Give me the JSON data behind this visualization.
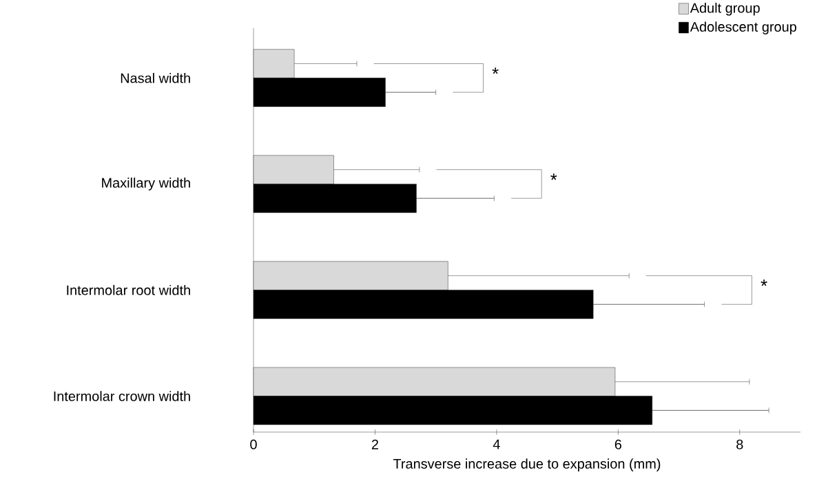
{
  "chart_data": {
    "type": "bar",
    "orientation": "horizontal",
    "xlabel": "Transverse increase due to expansion (mm)",
    "categories": [
      "Nasal width",
      "Maxillary width",
      "Intermolar root width",
      "Intermolar crown width"
    ],
    "series": [
      {
        "name": "Adult group",
        "color": "#d9d9d9",
        "values": [
          0.67,
          1.32,
          3.2,
          5.95
        ],
        "errors": [
          1.03,
          1.41,
          2.98,
          2.21
        ]
      },
      {
        "name": "Adolescent group",
        "color": "#000000",
        "values": [
          2.17,
          2.68,
          5.59,
          6.56
        ],
        "errors": [
          0.83,
          1.28,
          1.83,
          1.92
        ]
      }
    ],
    "xlim": [
      0,
      9
    ],
    "xticks": [
      0,
      2,
      4,
      6,
      8
    ],
    "legend": "top right",
    "grid": false,
    "annotations": [
      "*",
      "*",
      "*"
    ]
  }
}
